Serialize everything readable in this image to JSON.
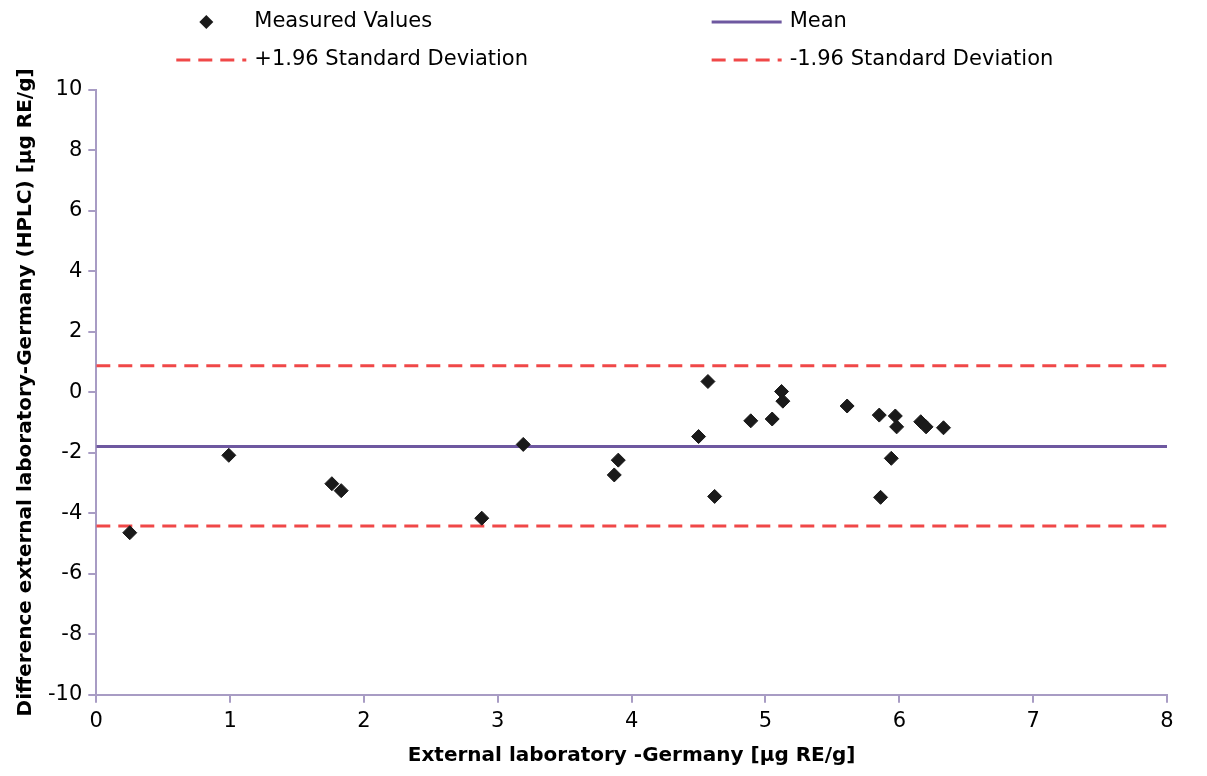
{
  "chart_data": {
    "type": "scatter",
    "xlabel": "External laboratory -Germany [µg RE/g]",
    "ylabel": "Difference external laboratory-Germany (HPLC) [µg RE/g]",
    "xlim": [
      0,
      8
    ],
    "xticks": [
      0,
      1,
      2,
      3,
      4,
      5,
      6,
      7,
      8
    ],
    "ylim": [
      -10,
      10
    ],
    "yticks": [
      -10,
      -8,
      -6,
      -4,
      -2,
      0,
      2,
      4,
      6,
      8,
      10
    ],
    "grid": false,
    "legend": "top",
    "series": [
      {
        "name": "Measured Values",
        "type": "scatter",
        "marker": "diamond",
        "color": "#1a1a1a",
        "x": [
          0.25,
          0.99,
          1.76,
          1.83,
          2.88,
          3.19,
          3.87,
          3.9,
          4.5,
          4.57,
          4.62,
          4.89,
          5.05,
          5.12,
          5.13,
          5.61,
          5.85,
          5.86,
          5.97,
          5.98,
          5.94,
          6.16,
          6.2,
          6.33
        ],
        "values": [
          -4.64,
          -2.08,
          -3.02,
          -3.25,
          -4.16,
          -1.72,
          -2.73,
          -2.24,
          -1.46,
          0.36,
          -3.44,
          -0.94,
          -0.88,
          0.03,
          -0.29,
          -0.45,
          -0.75,
          -3.47,
          -0.78,
          -1.14,
          -2.18,
          -0.97,
          -1.14,
          -1.17
        ]
      },
      {
        "name": "Mean",
        "type": "line",
        "line_style": "solid",
        "color": "#6e58a0",
        "x": [
          0,
          8
        ],
        "values": [
          -1.79,
          -1.79
        ]
      },
      {
        "name": "+1.96 Standard Deviation",
        "type": "line",
        "line_style": "dashed",
        "color": "#f04848",
        "x": [
          0,
          8
        ],
        "values": [
          0.88,
          0.88
        ]
      },
      {
        "name": "-1.96 Standard Deviation",
        "type": "line",
        "line_style": "dashed",
        "color": "#f04848",
        "x": [
          0,
          8
        ],
        "values": [
          -4.42,
          -4.42
        ]
      }
    ]
  }
}
